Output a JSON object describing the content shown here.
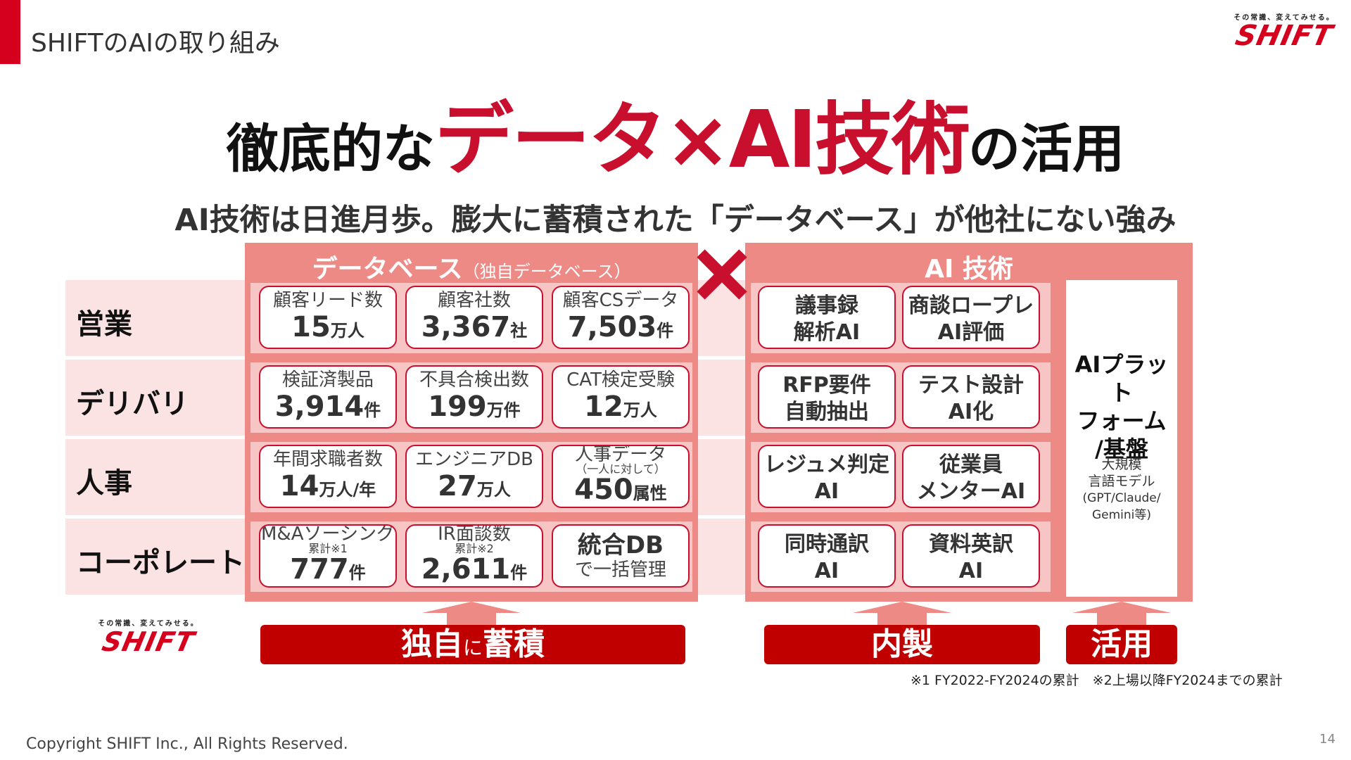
{
  "header": {
    "section_title": "SHIFTのAIの取り組み",
    "logo_tagline": "その常識、変えてみせる。",
    "logo_text": "SHIFT"
  },
  "title": {
    "part1": "徹底的な",
    "part2": "データ×AI技術",
    "part3": "の活用"
  },
  "subtitle": "AI技術は日進月歩。膨大に蓄積された「データベース」が他社にない強み",
  "database": {
    "heading": "データベース",
    "heading_note": "（独自データベース）"
  },
  "ai": {
    "heading": "AI 技術",
    "platform_title_1": "AIプラット",
    "platform_title_2": "フォーム",
    "platform_title_3": "/基盤",
    "platform_desc_1": "大規模",
    "platform_desc_2": "言語モデル",
    "platform_desc_3": "(GPT/Claude/",
    "platform_desc_4": "Gemini等)"
  },
  "rows": [
    {
      "label": "営業",
      "cards": [
        {
          "label": "顧客リード数",
          "sub": "",
          "value": "15",
          "unit": "万人"
        },
        {
          "label": "顧客社数",
          "sub": "",
          "value": "3,367",
          "unit": "社"
        },
        {
          "label": "顧客CSデータ",
          "sub": "",
          "value": "7,503",
          "unit": "件"
        }
      ],
      "ai": [
        "議事録\n解析AI",
        "商談ロープレ\nAI評価"
      ]
    },
    {
      "label": "デリバリ",
      "cards": [
        {
          "label": "検証済製品",
          "sub": "",
          "value": "3,914",
          "unit": "件"
        },
        {
          "label": "不具合検出数",
          "sub": "",
          "value": "199",
          "unit": "万件"
        },
        {
          "label": "CAT検定受験",
          "sub": "",
          "value": "12",
          "unit": "万人"
        }
      ],
      "ai": [
        "RFP要件\n自動抽出",
        "テスト設計\nAI化"
      ]
    },
    {
      "label": "人事",
      "cards": [
        {
          "label": "年間求職者数",
          "sub": "",
          "value": "14",
          "unit": "万人/年"
        },
        {
          "label": "エンジニアDB",
          "sub": "",
          "value": "27",
          "unit": "万人"
        },
        {
          "label": "人事データ",
          "sub": "（一人に対して）",
          "value": "450",
          "unit": "属性"
        }
      ],
      "ai": [
        "レジュメ判定\nAI",
        "従業員\nメンターAI"
      ]
    },
    {
      "label": "コーポレート",
      "cards": [
        {
          "label": "M&Aソーシング",
          "sub": "累計※1",
          "value": "777",
          "unit": "件"
        },
        {
          "label": "IR面談数",
          "sub": "累計※2",
          "value": "2,611",
          "unit": "件"
        },
        {
          "label": "統合DB",
          "sub": "",
          "value": "",
          "unit": "",
          "line2": "で一括管理"
        }
      ],
      "ai": [
        "同時通訳\nAI",
        "資料英訳\nAI"
      ]
    }
  ],
  "banners": {
    "accumulate_1": "独自",
    "accumulate_2": "に",
    "accumulate_3": "蓄積",
    "inhouse": "内製",
    "utilize": "活用"
  },
  "footnote": "※1 FY2022-FY2024の累計　※2上場以降FY2024までの累計",
  "copyright": "Copyright SHIFT Inc., All Rights Reserved.",
  "page_number": "14",
  "colors": {
    "brand_red": "#c8102e",
    "panel": "#ee8a86",
    "band": "#f7c6c4",
    "label_band": "#fbe3e3",
    "banner": "#c00000"
  }
}
